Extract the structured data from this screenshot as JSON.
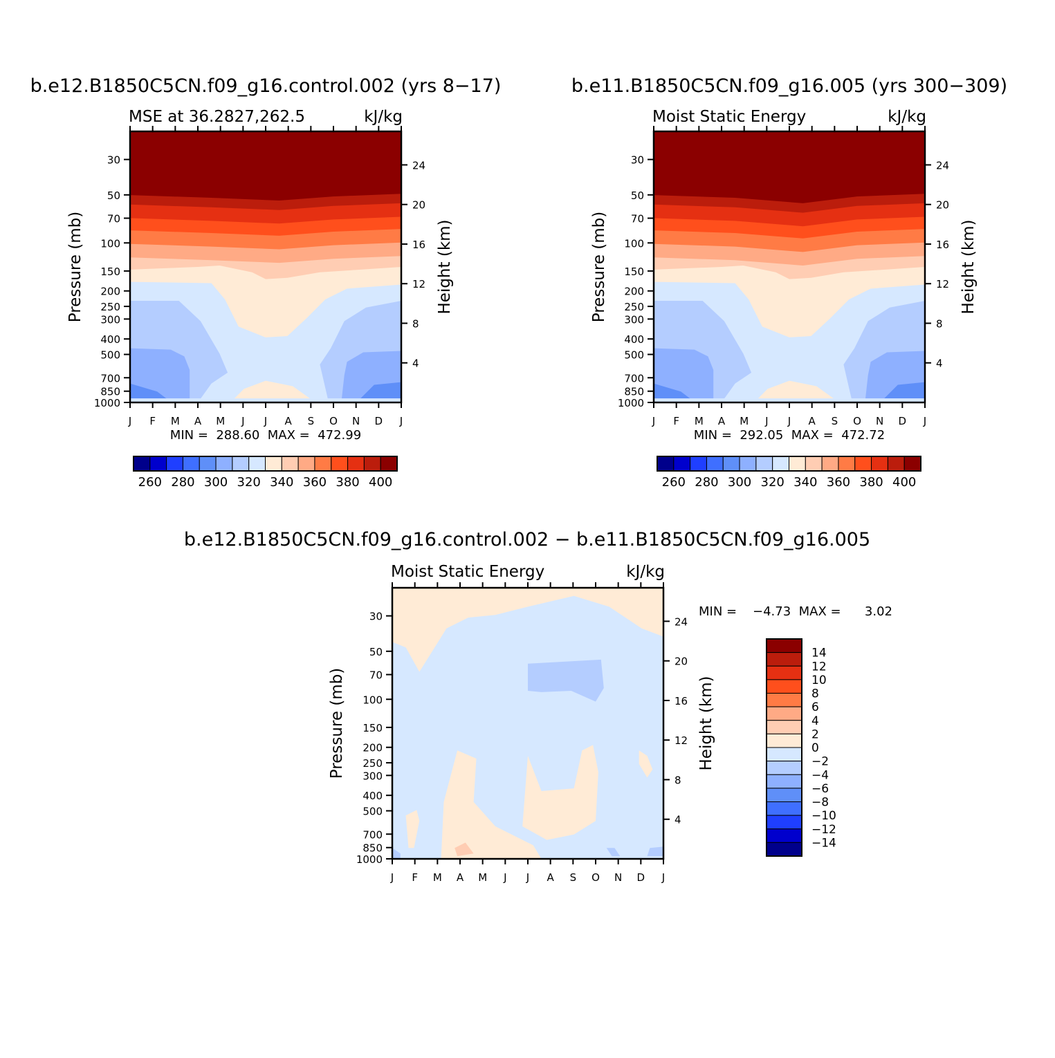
{
  "palette": {
    "colors": [
      "#00008b",
      "#0000cd",
      "#1f3fff",
      "#3f6fff",
      "#5f8ff8",
      "#8eb0ff",
      "#b4cdff",
      "#d6e8ff",
      "#ffebd6",
      "#ffcdb3",
      "#ffaa85",
      "#ff7b45",
      "#ff4f1c",
      "#e53012",
      "#bb1d0c",
      "#8b0000"
    ],
    "comment": "blue-white-red 16 color map"
  },
  "chart_data": [
    {
      "type": "heatmap",
      "title": "b.e12.B1850C5CN.f09_g16.control.002 (yrs 8−17)",
      "subtitle_left": "MSE at 36.2827,262.5",
      "subtitle_right": "kJ/kg",
      "xlabel": "",
      "ylabel": "Pressure (mb)",
      "ylabel_right": "Height (km)",
      "x_ticks": [
        "J",
        "F",
        "M",
        "A",
        "M",
        "J",
        "J",
        "A",
        "S",
        "O",
        "N",
        "D",
        "J"
      ],
      "y_ticks": [
        30,
        50,
        70,
        100,
        150,
        200,
        250,
        300,
        400,
        500,
        700,
        850,
        1000
      ],
      "y_scale": "log",
      "ylim": [
        1000,
        20
      ],
      "y2_ticks": [
        24,
        20,
        16,
        12,
        8,
        4
      ],
      "minmax_text": "MIN =  288.60  MAX =  472.99",
      "min": 288.6,
      "max": 472.99,
      "colorbar": {
        "orientation": "horizontal",
        "levels": [
          255,
          260,
          265,
          270,
          275,
          280,
          285,
          290,
          295,
          300,
          305,
          310,
          315,
          320,
          325,
          330,
          335,
          340,
          345,
          350,
          355,
          360,
          365,
          370,
          375,
          380,
          385,
          390,
          395,
          400
        ],
        "labels": [
          "260",
          "280",
          "300",
          "320",
          "340",
          "360",
          "380",
          "400"
        ],
        "label_values": [
          260,
          280,
          300,
          320,
          340,
          360,
          380,
          400
        ]
      }
    },
    {
      "type": "heatmap",
      "title": "b.e11.B1850C5CN.f09_g16.005 (yrs 300−309)",
      "subtitle_left": "Moist Static Energy",
      "subtitle_right": "kJ/kg",
      "ylabel": "Pressure (mb)",
      "ylabel_right": "Height (km)",
      "x_ticks": [
        "J",
        "F",
        "M",
        "A",
        "M",
        "J",
        "J",
        "A",
        "S",
        "O",
        "N",
        "D",
        "J"
      ],
      "y_ticks": [
        30,
        50,
        70,
        100,
        150,
        200,
        250,
        300,
        400,
        500,
        700,
        850,
        1000
      ],
      "y_scale": "log",
      "ylim": [
        1000,
        20
      ],
      "y2_ticks": [
        24,
        20,
        16,
        12,
        8,
        4
      ],
      "minmax_text": "MIN =  292.05  MAX =  472.72",
      "min": 292.05,
      "max": 472.72,
      "colorbar": {
        "orientation": "horizontal",
        "labels": [
          "260",
          "280",
          "300",
          "320",
          "340",
          "360",
          "380",
          "400"
        ],
        "label_values": [
          260,
          280,
          300,
          320,
          340,
          360,
          380,
          400
        ]
      }
    },
    {
      "type": "heatmap",
      "title": "b.e12.B1850C5CN.f09_g16.control.002 − b.e11.B1850C5CN.f09_g16.005",
      "subtitle_left": "Moist Static Energy",
      "subtitle_right": "kJ/kg",
      "ylabel": "Pressure (mb)",
      "ylabel_right": "Height (km)",
      "x_ticks": [
        "J",
        "F",
        "M",
        "A",
        "M",
        "J",
        "J",
        "A",
        "S",
        "O",
        "N",
        "D",
        "J"
      ],
      "y_ticks": [
        30,
        50,
        70,
        100,
        150,
        200,
        250,
        300,
        400,
        500,
        700,
        850,
        1000
      ],
      "y_scale": "log",
      "ylim": [
        1000,
        20
      ],
      "y2_ticks": [
        24,
        20,
        16,
        12,
        8,
        4
      ],
      "minmax_text": "MIN =    −4.73  MAX =      3.02",
      "min": -4.73,
      "max": 3.02,
      "colorbar": {
        "orientation": "vertical",
        "levels": [
          -16,
          -14,
          -12,
          -10,
          -8,
          -6,
          -4,
          -2,
          0,
          2,
          4,
          6,
          8,
          10,
          12,
          14,
          16
        ],
        "labels": [
          "14",
          "12",
          "10",
          "8",
          "6",
          "4",
          "2",
          "0",
          "−2",
          "−4",
          "−6",
          "−8",
          "−10",
          "−12",
          "−14"
        ],
        "label_values": [
          14,
          12,
          10,
          8,
          6,
          4,
          2,
          0,
          -2,
          -4,
          -6,
          -8,
          -10,
          -12,
          -14
        ]
      }
    }
  ]
}
